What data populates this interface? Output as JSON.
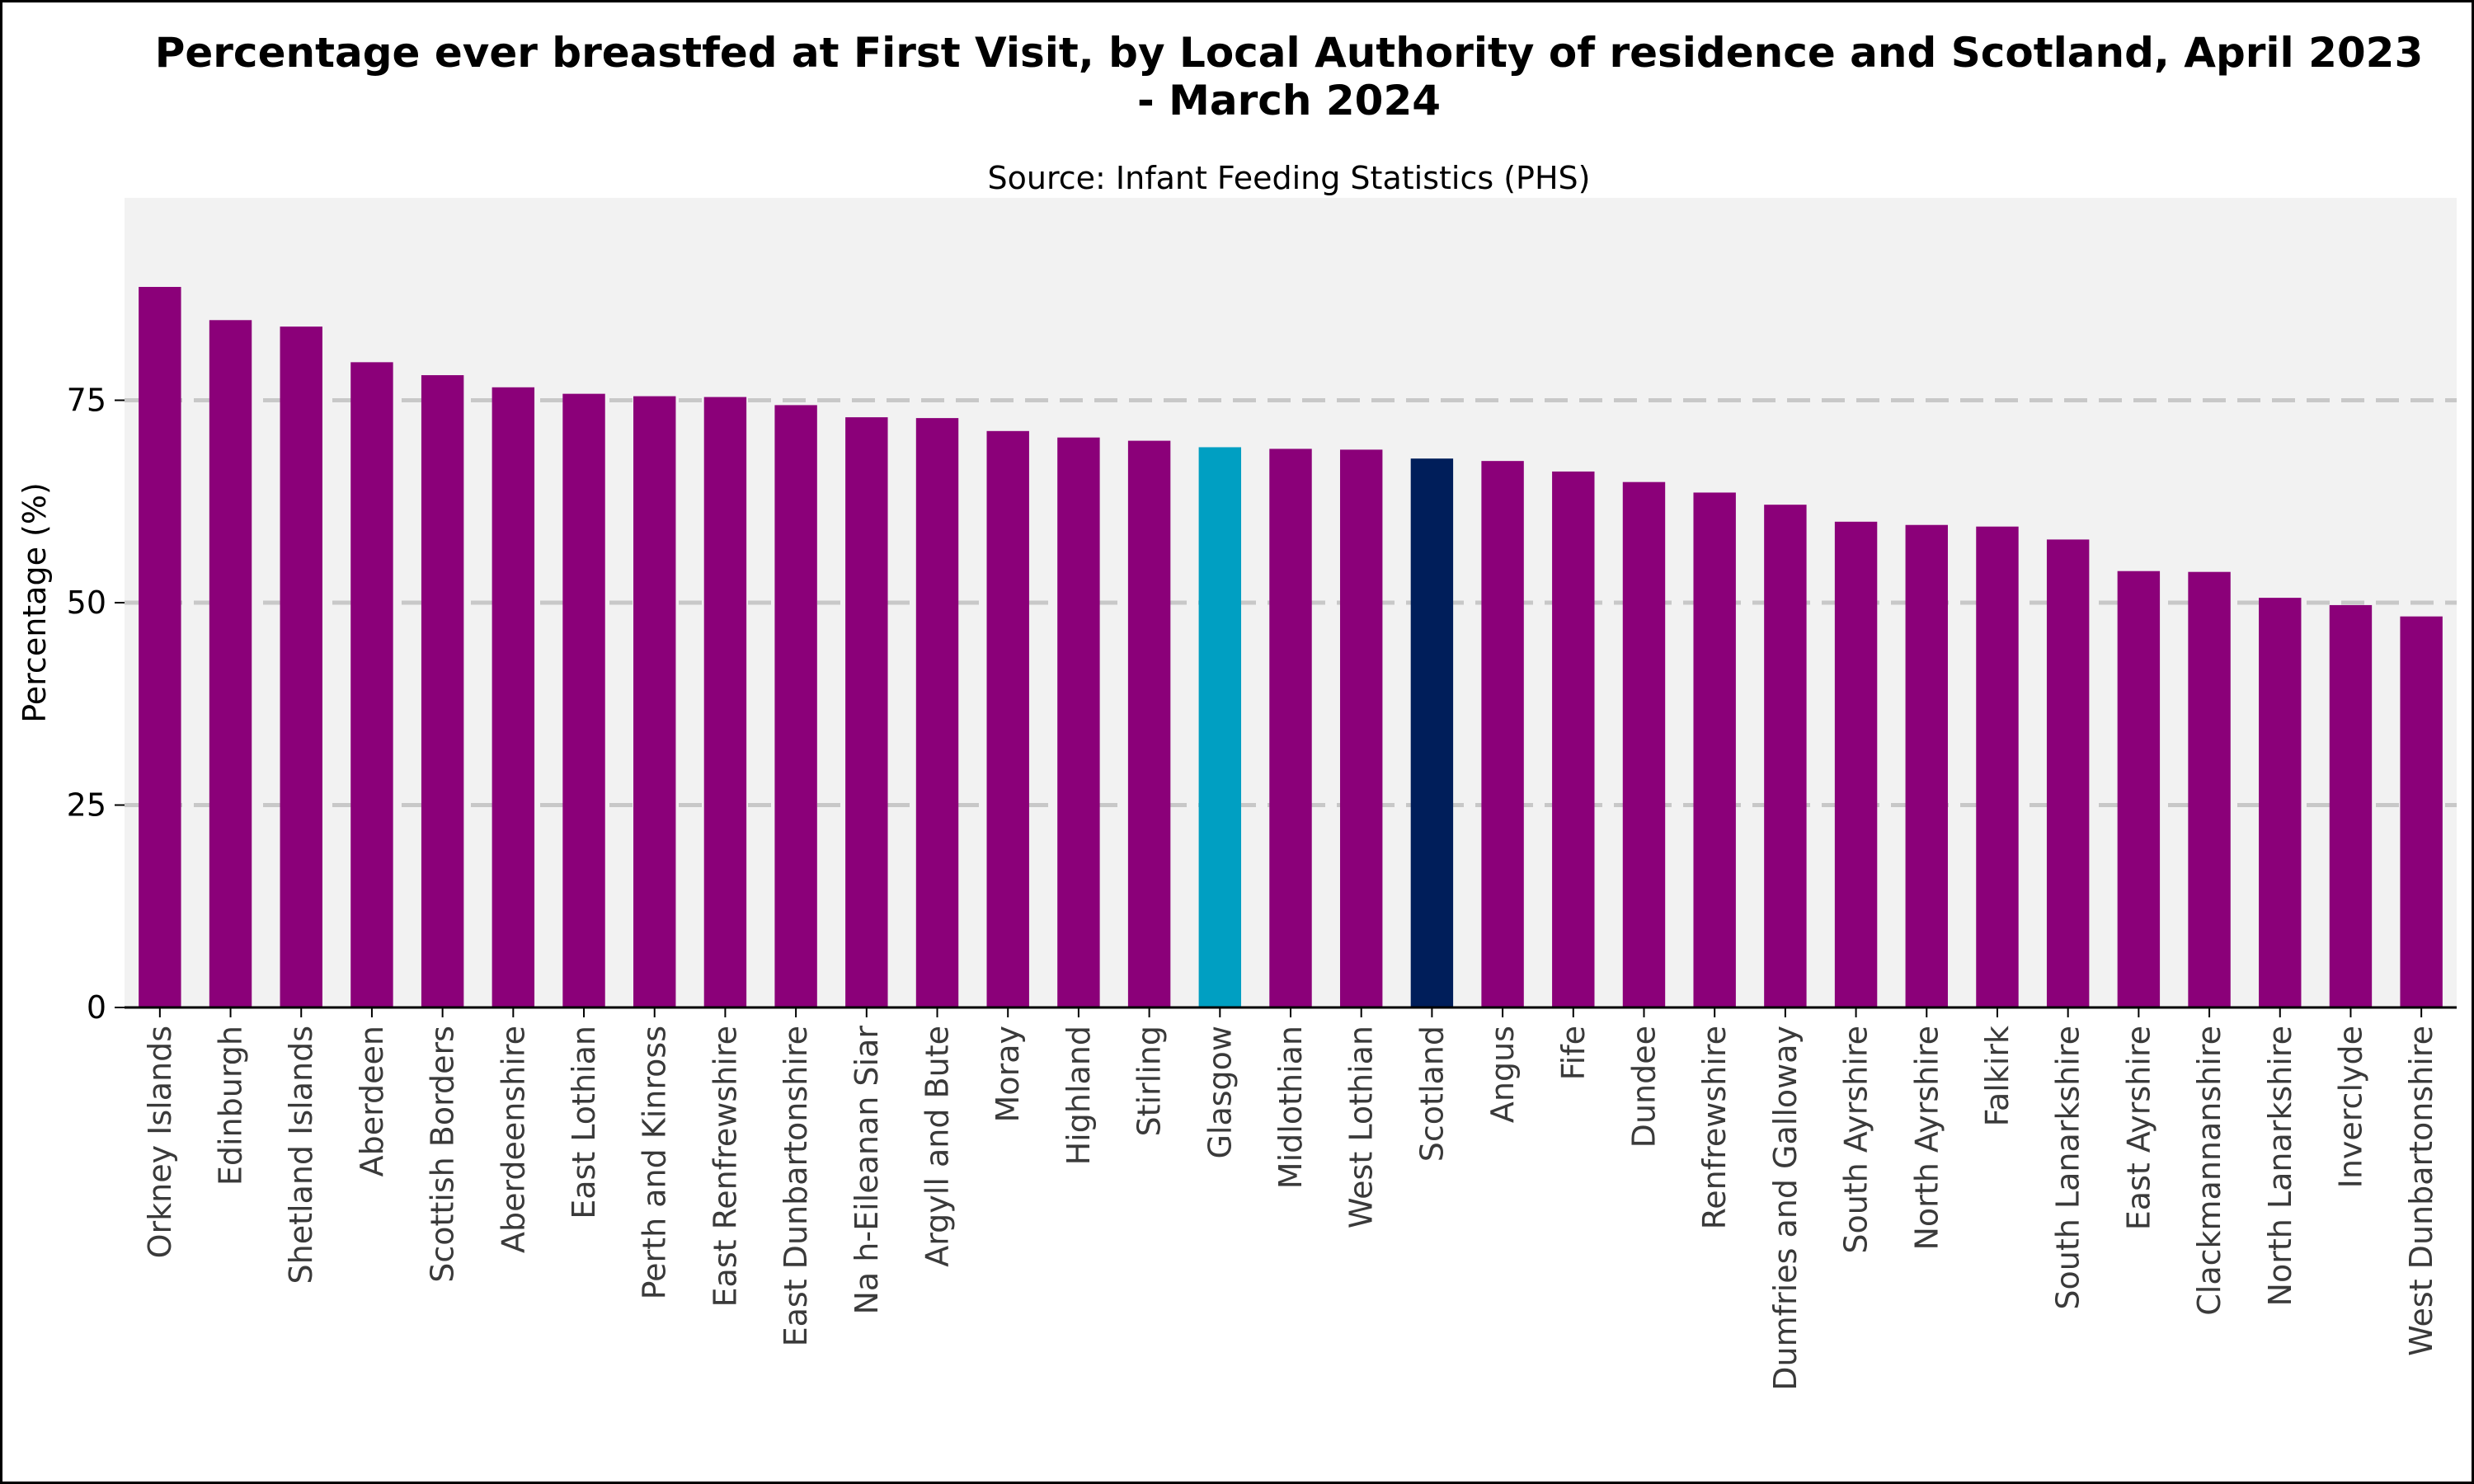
{
  "colors": {
    "default_bar": "#8B0079",
    "highlight_glasgow": "#009FC2",
    "highlight_scotland": "#001E5A",
    "panel_background": "#F2F2F2",
    "gridline": "#C8C8C8"
  },
  "chart_data": {
    "type": "bar",
    "title_line1": "Percentage ever breastfed at First Visit, by Local Authority of residence and Scotland, April 2023",
    "title_line2": "- March 2024",
    "subtitle": "Source: Infant Feeding Statistics (PHS)",
    "xlabel": "",
    "ylabel": "Percentage  (%)",
    "ylim": [
      0,
      100
    ],
    "yticks": [
      0,
      25,
      50,
      75
    ],
    "grid": "horizontal dashed at y ticks",
    "categories": [
      "Orkney Islands",
      "Edinburgh",
      "Shetland Islands",
      "Aberdeen",
      "Scottish Borders",
      "Aberdeenshire",
      "East Lothian",
      "Perth and Kinross",
      "East Renfrewshire",
      "East Dunbartonshire",
      "Na h-Eileanan Siar",
      "Argyll and Bute",
      "Moray",
      "Highland",
      "Stirling",
      "Glasgow",
      "Midlothian",
      "West Lothian",
      "Scotland",
      "Angus",
      "Fife",
      "Dundee",
      "Renfrewshire",
      "Dumfries and Galloway",
      "South Ayrshire",
      "North Ayrshire",
      "Falkirk",
      "South Lanarkshire",
      "East Ayrshire",
      "Clackmannanshire",
      "North Lanarkshire",
      "Inverclyde",
      "West Dunbartonshire"
    ],
    "values": [
      89.0,
      84.9,
      84.1,
      79.7,
      78.1,
      76.6,
      75.8,
      75.5,
      75.4,
      74.4,
      72.9,
      72.8,
      71.2,
      70.4,
      70.0,
      69.2,
      69.0,
      68.9,
      67.8,
      67.5,
      66.2,
      64.9,
      63.6,
      62.1,
      60.0,
      59.6,
      59.4,
      57.8,
      53.9,
      53.8,
      50.6,
      49.7,
      48.3
    ],
    "highlights": {
      "Glasgow": "highlight_glasgow",
      "Scotland": "highlight_scotland"
    }
  }
}
